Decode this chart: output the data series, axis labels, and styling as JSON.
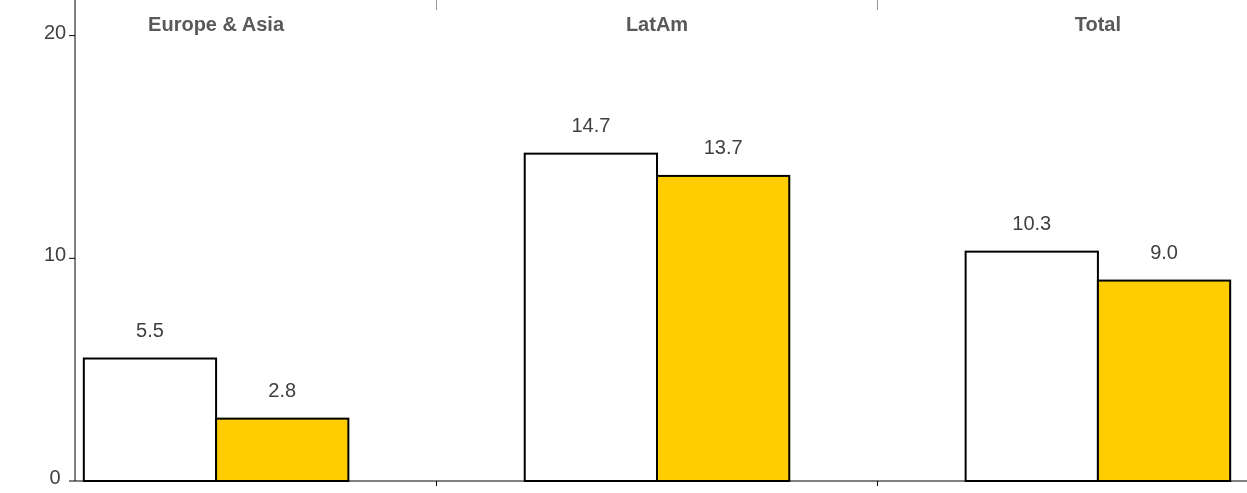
{
  "chart_data": {
    "type": "bar",
    "categories": [
      "Europe & Asia",
      "LatAm",
      "Total"
    ],
    "series": [
      {
        "color": "#ffffff",
        "values": [
          5.5,
          14.7,
          10.3
        ],
        "value_labels": [
          "5.5",
          "14.7",
          "10.3"
        ]
      },
      {
        "color": "#ffcc00",
        "values": [
          2.8,
          13.7,
          9.0
        ],
        "value_labels": [
          "2.8",
          "13.7",
          "9.0"
        ]
      }
    ],
    "ylim": [
      0,
      21.6
    ],
    "yticks": [
      0,
      10,
      20
    ],
    "grid": false
  }
}
